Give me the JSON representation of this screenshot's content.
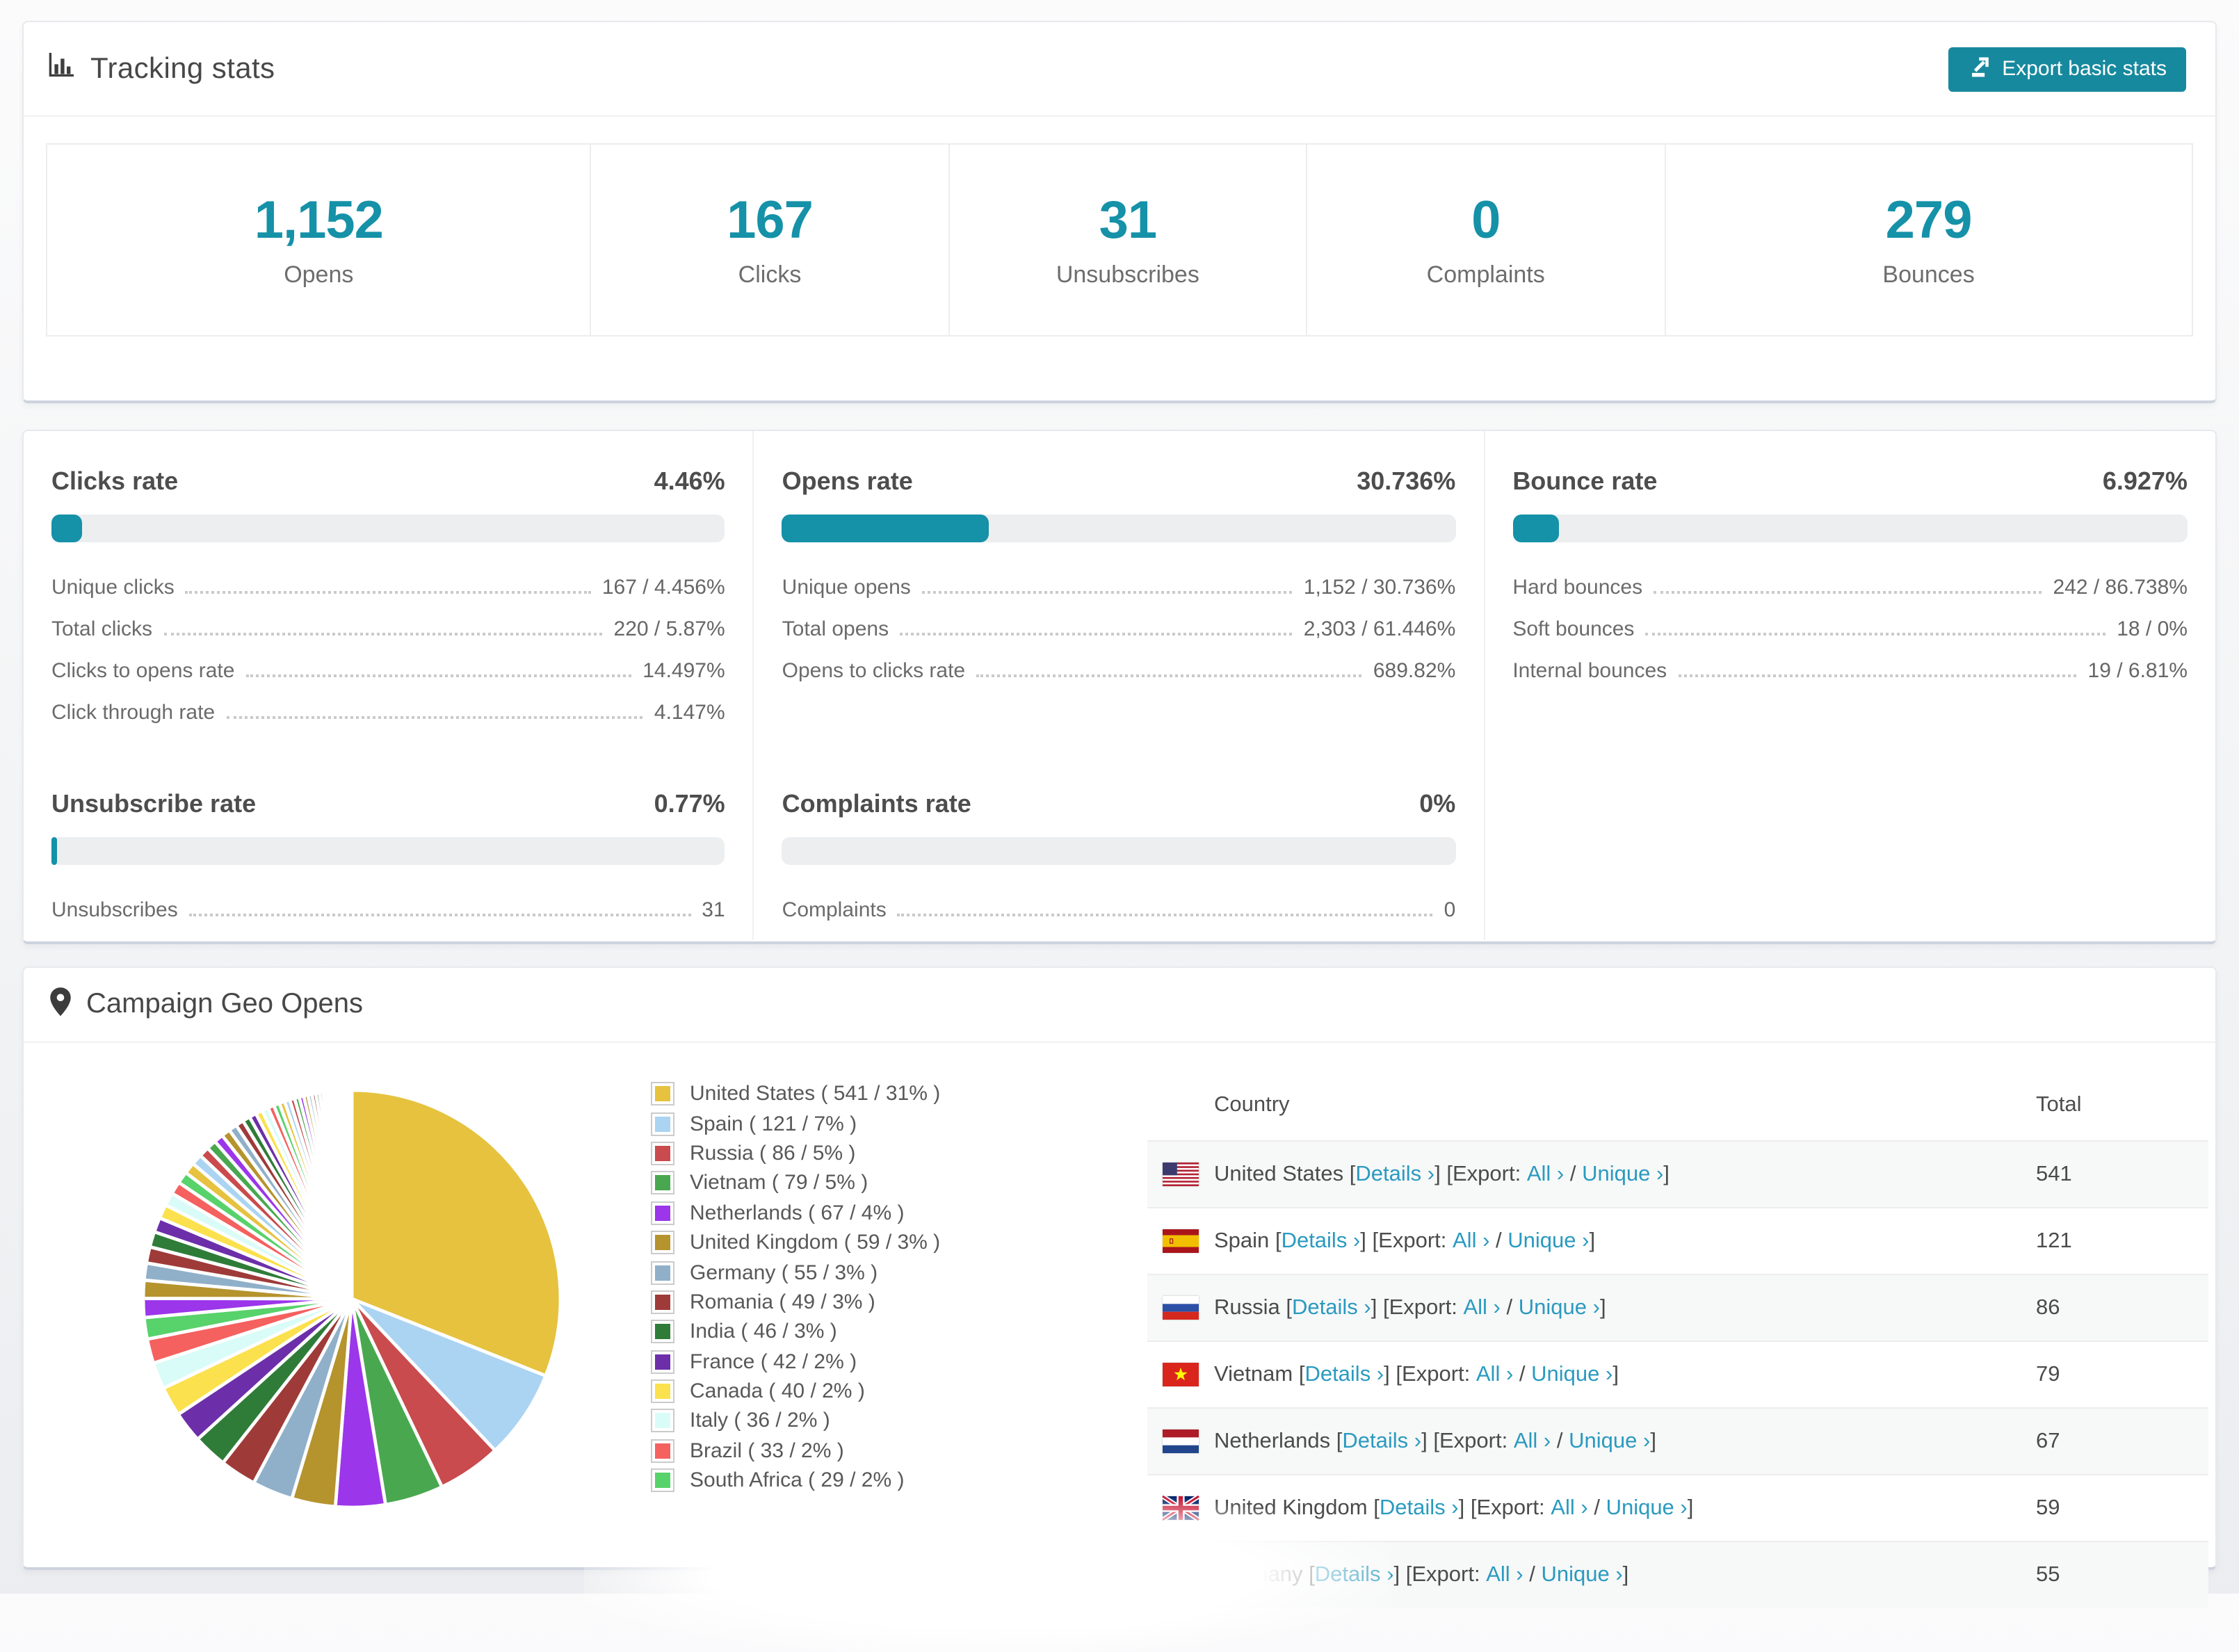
{
  "colors": {
    "accent": "#1591a8",
    "button": "#17899e",
    "link": "#2a9ac0"
  },
  "header": {
    "title": "Tracking stats",
    "export_button": "Export basic stats"
  },
  "summary": [
    {
      "value": "1,152",
      "label": "Opens"
    },
    {
      "value": "167",
      "label": "Clicks"
    },
    {
      "value": "31",
      "label": "Unsubscribes"
    },
    {
      "value": "0",
      "label": "Complaints"
    },
    {
      "value": "279",
      "label": "Bounces"
    }
  ],
  "rates": {
    "row1": [
      {
        "title": "Clicks rate",
        "value": "4.46%",
        "percent": 4.46,
        "rows": [
          {
            "label": "Unique clicks",
            "value": "167 / 4.456%"
          },
          {
            "label": "Total clicks",
            "value": "220 / 5.87%"
          },
          {
            "label": "Clicks to opens rate",
            "value": "14.497%"
          },
          {
            "label": "Click through rate",
            "value": "4.147%"
          }
        ]
      },
      {
        "title": "Opens rate",
        "value": "30.736%",
        "percent": 30.736,
        "rows": [
          {
            "label": "Unique opens",
            "value": "1,152 / 30.736%"
          },
          {
            "label": "Total opens",
            "value": "2,303 / 61.446%"
          },
          {
            "label": "Opens to clicks rate",
            "value": "689.82%"
          }
        ]
      },
      {
        "title": "Bounce rate",
        "value": "6.927%",
        "percent": 6.927,
        "rows": [
          {
            "label": "Hard bounces",
            "value": "242 / 86.738%"
          },
          {
            "label": "Soft bounces",
            "value": "18 / 0%"
          },
          {
            "label": "Internal bounces",
            "value": "19 / 6.81%"
          }
        ]
      }
    ],
    "row2": [
      {
        "title": "Unsubscribe rate",
        "value": "0.77%",
        "percent": 0.77,
        "rows": [
          {
            "label": "Unsubscribes",
            "value": "31"
          }
        ]
      },
      {
        "title": "Complaints rate",
        "value": "0%",
        "percent": 0,
        "rows": [
          {
            "label": "Complaints",
            "value": "0"
          }
        ]
      }
    ]
  },
  "geo": {
    "title": "Campaign Geo Opens",
    "table": {
      "headers": [
        "Country",
        "Total"
      ],
      "tokens": {
        "lb": "[",
        "rb": "]",
        "export": "Export:",
        "slash": "/",
        "details": "Details ›",
        "all": "All ›",
        "unique": "Unique ›"
      },
      "rows": [
        {
          "country": "United States",
          "flag": "us",
          "total": "541"
        },
        {
          "country": "Spain",
          "flag": "es",
          "total": "121"
        },
        {
          "country": "Russia",
          "flag": "ru",
          "total": "86"
        },
        {
          "country": "Vietnam",
          "flag": "vn",
          "total": "79"
        },
        {
          "country": "Netherlands",
          "flag": "nl",
          "total": "67"
        },
        {
          "country": "United Kingdom",
          "flag": "gb",
          "total": "59"
        },
        {
          "country": "Germany",
          "flag": "de",
          "total": "55"
        }
      ]
    }
  },
  "chart_data": {
    "type": "pie",
    "title": "Campaign Geo Opens",
    "legend_position": "right",
    "series": [
      {
        "name": "United States",
        "value": 541,
        "pct": "31%",
        "color": "#e6c23f",
        "label": "United States ( 541 / 31% )"
      },
      {
        "name": "Spain",
        "value": 121,
        "pct": "7%",
        "color": "#abd4f2",
        "label": "Spain ( 121 / 7% )"
      },
      {
        "name": "Russia",
        "value": 86,
        "pct": "5%",
        "color": "#c94b4d",
        "label": "Russia ( 86 / 5% )"
      },
      {
        "name": "Vietnam",
        "value": 79,
        "pct": "5%",
        "color": "#49a84f",
        "label": "Vietnam ( 79 / 5% )"
      },
      {
        "name": "Netherlands",
        "value": 67,
        "pct": "4%",
        "color": "#9b36ea",
        "label": "Netherlands ( 67 / 4% )"
      },
      {
        "name": "United Kingdom",
        "value": 59,
        "pct": "3%",
        "color": "#b5932d",
        "label": "United Kingdom ( 59 / 3% )"
      },
      {
        "name": "Germany",
        "value": 55,
        "pct": "3%",
        "color": "#90b0c9",
        "label": "Germany ( 55 / 3% )"
      },
      {
        "name": "Romania",
        "value": 49,
        "pct": "3%",
        "color": "#9e3b39",
        "label": "Romania ( 49 / 3% )"
      },
      {
        "name": "India",
        "value": 46,
        "pct": "3%",
        "color": "#2e7c38",
        "label": "India ( 46 / 3% )"
      },
      {
        "name": "France",
        "value": 42,
        "pct": "2%",
        "color": "#6c2fa9",
        "label": "France ( 42 / 2% )"
      },
      {
        "name": "Canada",
        "value": 40,
        "pct": "2%",
        "color": "#fbe14d",
        "label": "Canada ( 40 / 2% )"
      },
      {
        "name": "Italy",
        "value": 36,
        "pct": "2%",
        "color": "#d9fcf8",
        "label": "Italy ( 36 / 2% )"
      },
      {
        "name": "Brazil",
        "value": 33,
        "pct": "2%",
        "color": "#f4615f",
        "label": "Brazil ( 33 / 2% )"
      },
      {
        "name": "South Africa",
        "value": 29,
        "pct": "2%",
        "color": "#58d26a",
        "label": "South Africa ( 29 / 2% )"
      }
    ],
    "others": {
      "count": 45,
      "first": 25.6,
      "ratio": 0.95
    }
  }
}
